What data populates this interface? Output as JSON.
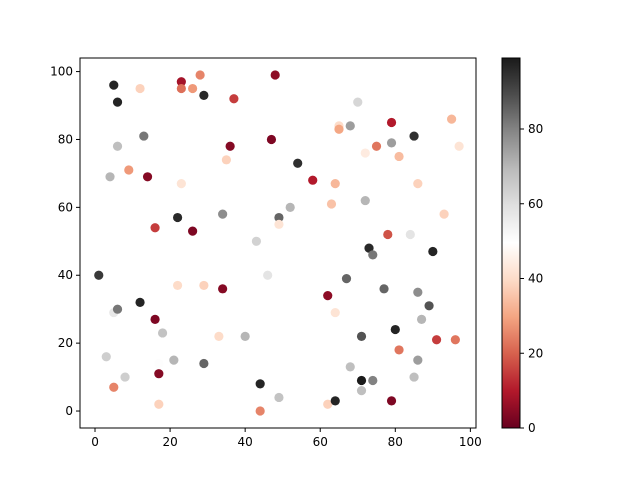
{
  "chart_data": {
    "type": "scatter",
    "title": "",
    "xlabel": "",
    "ylabel": "",
    "xlim": [
      -4,
      101.5
    ],
    "ylim": [
      -5,
      104
    ],
    "x_ticks": [
      0,
      20,
      40,
      60,
      80,
      100
    ],
    "y_ticks": [
      0,
      20,
      40,
      60,
      80,
      100
    ],
    "grid": false,
    "colormap": "RdGy",
    "colorbar": {
      "min": 0,
      "max": 99,
      "ticks": [
        0,
        20,
        40,
        60,
        80
      ]
    },
    "points": [
      {
        "x": 5,
        "y": 96,
        "c": 97
      },
      {
        "x": 6,
        "y": 91,
        "c": 97
      },
      {
        "x": 12,
        "y": 95,
        "c": 38
      },
      {
        "x": 23,
        "y": 97,
        "c": 8
      },
      {
        "x": 23,
        "y": 95,
        "c": 22
      },
      {
        "x": 26,
        "y": 95,
        "c": 28
      },
      {
        "x": 28,
        "y": 99,
        "c": 25
      },
      {
        "x": 29,
        "y": 93,
        "c": 96
      },
      {
        "x": 37,
        "y": 92,
        "c": 15
      },
      {
        "x": 48,
        "y": 99,
        "c": 5
      },
      {
        "x": 4,
        "y": 69,
        "c": 70
      },
      {
        "x": 6,
        "y": 78,
        "c": 68
      },
      {
        "x": 9,
        "y": 71,
        "c": 28
      },
      {
        "x": 13,
        "y": 81,
        "c": 82
      },
      {
        "x": 14,
        "y": 69,
        "c": 4
      },
      {
        "x": 23,
        "y": 67,
        "c": 42
      },
      {
        "x": 35,
        "y": 74,
        "c": 38
      },
      {
        "x": 36,
        "y": 78,
        "c": 4
      },
      {
        "x": 47,
        "y": 80,
        "c": 3
      },
      {
        "x": 54,
        "y": 73,
        "c": 95
      },
      {
        "x": 58,
        "y": 68,
        "c": 10
      },
      {
        "x": 16,
        "y": 54,
        "c": 15
      },
      {
        "x": 22,
        "y": 57,
        "c": 96
      },
      {
        "x": 26,
        "y": 53,
        "c": 3
      },
      {
        "x": 34,
        "y": 58,
        "c": 78
      },
      {
        "x": 43,
        "y": 50,
        "c": 63
      },
      {
        "x": 49,
        "y": 57,
        "c": 85
      },
      {
        "x": 52,
        "y": 60,
        "c": 70
      },
      {
        "x": 49,
        "y": 55,
        "c": 42
      },
      {
        "x": 46,
        "y": 40,
        "c": 58
      },
      {
        "x": 1,
        "y": 40,
        "c": 93
      },
      {
        "x": 5,
        "y": 29,
        "c": 57
      },
      {
        "x": 6,
        "y": 30,
        "c": 82
      },
      {
        "x": 12,
        "y": 32,
        "c": 97
      },
      {
        "x": 16,
        "y": 27,
        "c": 3
      },
      {
        "x": 18,
        "y": 23,
        "c": 67
      },
      {
        "x": 22,
        "y": 37,
        "c": 40
      },
      {
        "x": 29,
        "y": 37,
        "c": 38
      },
      {
        "x": 34,
        "y": 36,
        "c": 4
      },
      {
        "x": 33,
        "y": 22,
        "c": 40
      },
      {
        "x": 40,
        "y": 22,
        "c": 70
      },
      {
        "x": 3,
        "y": 16,
        "c": 64
      },
      {
        "x": 5,
        "y": 7,
        "c": 25
      },
      {
        "x": 8,
        "y": 10,
        "c": 64
      },
      {
        "x": 17,
        "y": 14,
        "c": 50
      },
      {
        "x": 17,
        "y": 11,
        "c": 4
      },
      {
        "x": 17,
        "y": 2,
        "c": 38
      },
      {
        "x": 21,
        "y": 15,
        "c": 70
      },
      {
        "x": 29,
        "y": 14,
        "c": 85
      },
      {
        "x": 44,
        "y": 8,
        "c": 97
      },
      {
        "x": 44,
        "y": 0,
        "c": 25
      },
      {
        "x": 49,
        "y": 4,
        "c": 67
      },
      {
        "x": 65,
        "y": 84,
        "c": 40
      },
      {
        "x": 65,
        "y": 83,
        "c": 30
      },
      {
        "x": 68,
        "y": 84,
        "c": 75
      },
      {
        "x": 70,
        "y": 91,
        "c": 62
      },
      {
        "x": 72,
        "y": 76,
        "c": 44
      },
      {
        "x": 75,
        "y": 78,
        "c": 23
      },
      {
        "x": 79,
        "y": 85,
        "c": 10
      },
      {
        "x": 79,
        "y": 79,
        "c": 75
      },
      {
        "x": 81,
        "y": 75,
        "c": 34
      },
      {
        "x": 85,
        "y": 81,
        "c": 95
      },
      {
        "x": 86,
        "y": 67,
        "c": 38
      },
      {
        "x": 95,
        "y": 86,
        "c": 33
      },
      {
        "x": 97,
        "y": 78,
        "c": 42
      },
      {
        "x": 64,
        "y": 67,
        "c": 33
      },
      {
        "x": 63,
        "y": 61,
        "c": 35
      },
      {
        "x": 72,
        "y": 62,
        "c": 70
      },
      {
        "x": 73,
        "y": 48,
        "c": 96
      },
      {
        "x": 74,
        "y": 46,
        "c": 82
      },
      {
        "x": 78,
        "y": 52,
        "c": 18
      },
      {
        "x": 84,
        "y": 52,
        "c": 58
      },
      {
        "x": 90,
        "y": 47,
        "c": 97
      },
      {
        "x": 93,
        "y": 58,
        "c": 38
      },
      {
        "x": 62,
        "y": 34,
        "c": 5
      },
      {
        "x": 64,
        "y": 29,
        "c": 42
      },
      {
        "x": 67,
        "y": 39,
        "c": 85
      },
      {
        "x": 71,
        "y": 22,
        "c": 88
      },
      {
        "x": 77,
        "y": 36,
        "c": 85
      },
      {
        "x": 80,
        "y": 24,
        "c": 97
      },
      {
        "x": 81,
        "y": 18,
        "c": 23
      },
      {
        "x": 86,
        "y": 35,
        "c": 78
      },
      {
        "x": 87,
        "y": 27,
        "c": 70
      },
      {
        "x": 89,
        "y": 31,
        "c": 88
      },
      {
        "x": 91,
        "y": 21,
        "c": 15
      },
      {
        "x": 96,
        "y": 21,
        "c": 23
      },
      {
        "x": 62,
        "y": 2,
        "c": 38
      },
      {
        "x": 64,
        "y": 3,
        "c": 97
      },
      {
        "x": 68,
        "y": 13,
        "c": 68
      },
      {
        "x": 71,
        "y": 9,
        "c": 99
      },
      {
        "x": 71,
        "y": 6,
        "c": 68
      },
      {
        "x": 74,
        "y": 9,
        "c": 80
      },
      {
        "x": 79,
        "y": 3,
        "c": 3
      },
      {
        "x": 85,
        "y": 10,
        "c": 68
      },
      {
        "x": 86,
        "y": 15,
        "c": 75
      }
    ]
  }
}
